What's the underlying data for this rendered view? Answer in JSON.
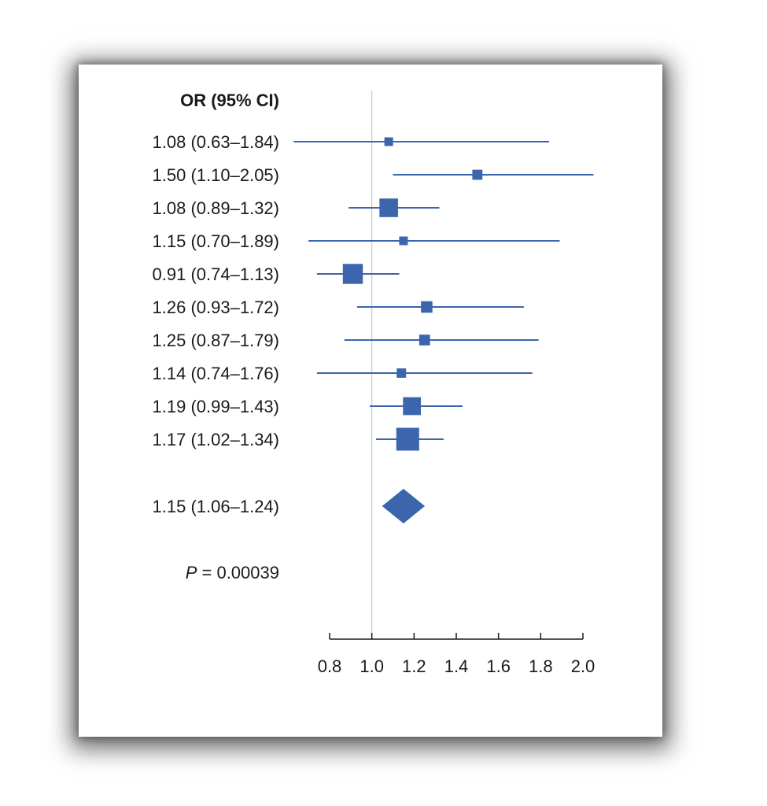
{
  "chart_data": {
    "type": "forest",
    "header": "OR (95% CI)",
    "reference_line": 1.0,
    "xlim": [
      0.8,
      2.0
    ],
    "xticks": [
      "0.8",
      "1.0",
      "1.2",
      "1.4",
      "1.6",
      "1.8",
      "2.0"
    ],
    "xtick_values": [
      0.8,
      1.0,
      1.2,
      1.4,
      1.6,
      1.8,
      2.0
    ],
    "color": "#3b65ad",
    "studies": [
      {
        "label": "1.08 (0.63–1.84)",
        "or": 1.08,
        "lo": 0.63,
        "hi": 1.84,
        "weight": 1.0
      },
      {
        "label": "1.50 (1.10–2.05)",
        "or": 1.5,
        "lo": 1.1,
        "hi": 2.05,
        "weight": 1.2
      },
      {
        "label": "1.08 (0.89–1.32)",
        "or": 1.08,
        "lo": 0.89,
        "hi": 1.32,
        "weight": 2.4
      },
      {
        "label": "1.15 (0.70–1.89)",
        "or": 1.15,
        "lo": 0.7,
        "hi": 1.89,
        "weight": 1.0
      },
      {
        "label": "0.91 (0.74–1.13)",
        "or": 0.91,
        "lo": 0.74,
        "hi": 1.13,
        "weight": 2.6
      },
      {
        "label": "1.26 (0.93–1.72)",
        "or": 1.26,
        "lo": 0.93,
        "hi": 1.72,
        "weight": 1.4
      },
      {
        "label": "1.25 (0.87–1.79)",
        "or": 1.25,
        "lo": 0.87,
        "hi": 1.79,
        "weight": 1.3
      },
      {
        "label": "1.14 (0.74–1.76)",
        "or": 1.14,
        "lo": 0.74,
        "hi": 1.76,
        "weight": 1.1
      },
      {
        "label": "1.19 (0.99–1.43)",
        "or": 1.19,
        "lo": 0.99,
        "hi": 1.43,
        "weight": 2.3
      },
      {
        "label": "1.17 (1.02–1.34)",
        "or": 1.17,
        "lo": 1.02,
        "hi": 1.34,
        "weight": 3.0
      }
    ],
    "summary": {
      "label": "1.15 (1.06–1.24)",
      "or": 1.15,
      "lo": 1.06,
      "hi": 1.24
    },
    "p_value": {
      "prefix": "P",
      "text": " = 0.00039"
    }
  }
}
